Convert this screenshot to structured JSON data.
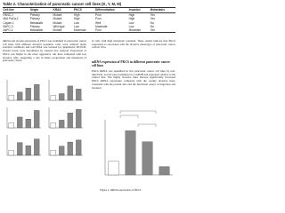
{
  "table": {
    "title": "Table 2. Characterization of pancreatic cancer cell lines (K, Y, M, M)",
    "header": [
      "Cell line",
      "Origin",
      "KRAS",
      "PKCδ",
      "Differentiation",
      "Invasion",
      "Metastasis"
    ],
    "rows": [
      [
        "PANC-1",
        "Primary",
        "Mutant",
        "High",
        "Poor",
        "High",
        "Yes"
      ],
      [
        "MIA PaCa-2",
        "Primary",
        "Mutant",
        "High",
        "Poor",
        "High",
        "Yes"
      ],
      [
        "Capan-1",
        "Metastatic",
        "Mutant",
        "Low",
        "Well",
        "Low",
        "No"
      ],
      [
        "BxPC-3",
        "Primary",
        "Wild type",
        "Low",
        "Moderate",
        "Low",
        "No"
      ],
      [
        "AsPC-1",
        "Metastatic",
        "Mutant",
        "Moderate",
        "Poor",
        "Moderate",
        "Yes"
      ]
    ]
  },
  "left_text": "mRNA and protein expression of PKCδ was examined in pancreatic cancer cell lines with different invasive potential. Cells were cultured under standard conditions and total RNA was isolated for quantitative RT-PCR. Protein levels were determined by western blot analysis. Expression of PKCδ was higher in the more aggressive cell lines compared with less invasive cells, suggesting a role in tumor progression and metastasis of pancreatic cancer.",
  "right_text": "in cells with high metastatic potential. These results indicate that PKCδ expression is associated with the invasive phenotype of pancreatic cancer cells in vitro.",
  "right_heading": "mRNA expression of PKCδ in different pancreatic cancer cell lines",
  "right_text2": "PKCδ mRNA was quantified in five pancreatic cancer cell lines by real-time PCR. Levels were normalized to GAPDH and expressed relative to the control line. The highly invasive lines showed significantly increased PKCδ mRNA expression compared with the weakly invasive lines, consistent with the protein data and the functional assays of migration and invasion.",
  "figure_caption": "Figure 2. mRNA expression of PKCδ",
  "panels": [
    {
      "values": [
        1,
        1.6,
        2.4,
        3.1
      ],
      "ylim": [
        0,
        4
      ]
    },
    {
      "values": [
        1,
        1.3,
        2.8,
        2.2
      ],
      "ylim": [
        0,
        4
      ]
    },
    {
      "values": [
        1,
        2.1,
        1.7,
        3.4
      ],
      "ylim": [
        0,
        4
      ]
    },
    {
      "values": [
        1,
        1.5,
        2.9,
        3.6
      ],
      "ylim": [
        0,
        4
      ]
    },
    {
      "values": [
        1,
        2.5,
        1.9,
        3.2
      ],
      "ylim": [
        0,
        4
      ]
    },
    {
      "values": [
        1,
        1.8,
        2.6,
        3.0
      ],
      "ylim": [
        0,
        4
      ]
    }
  ],
  "main_figure": {
    "values": [
      1,
      3.2,
      2.4,
      0.6
    ],
    "ylim": [
      0,
      4
    ]
  }
}
